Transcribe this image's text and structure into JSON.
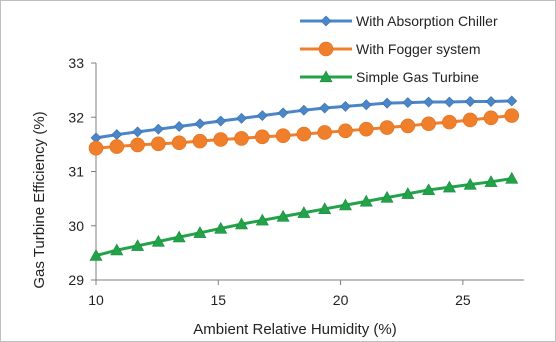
{
  "chart_data": {
    "type": "line",
    "title": "",
    "xlabel": "Ambient Relative Humidity (%)",
    "ylabel": "Gas Turbine Efficiency (%)",
    "xlim": [
      10,
      27.5
    ],
    "ylim": [
      29,
      33
    ],
    "xticks": [
      10,
      15,
      20,
      25
    ],
    "yticks": [
      29,
      30,
      31,
      32,
      33
    ],
    "grid": false,
    "legend": "top-right",
    "x": [
      10,
      10.85,
      11.7,
      12.55,
      13.4,
      14.25,
      15.1,
      15.95,
      16.8,
      17.65,
      18.5,
      19.35,
      20.2,
      21.05,
      21.9,
      22.75,
      23.6,
      24.45,
      25.3,
      26.15,
      27
    ],
    "series": [
      {
        "name": "With Absorption Chiller",
        "color": "#4a86c8",
        "marker": "diamond",
        "values": [
          31.62,
          31.68,
          31.73,
          31.78,
          31.83,
          31.88,
          31.93,
          31.98,
          32.03,
          32.08,
          32.13,
          32.17,
          32.2,
          32.23,
          32.26,
          32.27,
          32.28,
          32.28,
          32.29,
          32.29,
          32.3
        ]
      },
      {
        "name": "With Fogger system",
        "color": "#f07f2c",
        "marker": "circle",
        "values": [
          31.43,
          31.46,
          31.49,
          31.51,
          31.53,
          31.56,
          31.59,
          31.61,
          31.64,
          31.66,
          31.69,
          31.72,
          31.75,
          31.78,
          31.81,
          31.84,
          31.88,
          31.91,
          31.95,
          31.99,
          32.03
        ]
      },
      {
        "name": "Simple Gas Turbine",
        "color": "#22a34a",
        "marker": "triangle",
        "values": [
          29.45,
          29.55,
          29.63,
          29.71,
          29.79,
          29.87,
          29.95,
          30.03,
          30.1,
          30.17,
          30.24,
          30.31,
          30.38,
          30.45,
          30.52,
          30.59,
          30.66,
          30.71,
          30.76,
          30.81,
          30.87
        ]
      }
    ]
  }
}
